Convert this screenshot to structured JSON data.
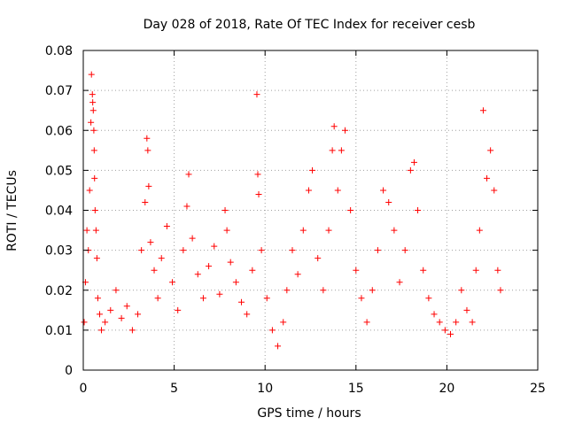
{
  "chart_data": {
    "type": "scatter",
    "title": "Day 028 of 2018, Rate Of TEC Index for receiver cesb",
    "xlabel": "GPS time / hours",
    "ylabel": "ROTI / TECUs",
    "xlim": [
      0,
      25
    ],
    "ylim": [
      0,
      0.08
    ],
    "xticks": [
      0,
      5,
      10,
      15,
      20,
      25
    ],
    "yticks": [
      0,
      0.01,
      0.02,
      0.03,
      0.04,
      0.05,
      0.06,
      0.07,
      0.08
    ],
    "xtick_labels": [
      "0",
      "5",
      "10",
      "15",
      "20",
      "25"
    ],
    "ytick_labels": [
      "0",
      "0.01",
      "0.02",
      "0.03",
      "0.04",
      "0.05",
      "0.06",
      "0.07",
      "0.08"
    ],
    "grid": true,
    "marker": "+",
    "color": "#ff0000",
    "series": [
      {
        "name": "ROTI",
        "x": [
          0.05,
          0.12,
          0.2,
          0.28,
          0.35,
          0.42,
          0.45,
          0.5,
          0.52,
          0.55,
          0.58,
          0.6,
          0.62,
          0.65,
          0.7,
          0.75,
          0.8,
          0.9,
          1.0,
          1.2,
          1.5,
          1.8,
          2.1,
          2.4,
          2.7,
          3.0,
          3.2,
          3.4,
          3.5,
          3.55,
          3.6,
          3.7,
          3.9,
          4.1,
          4.3,
          4.6,
          4.9,
          5.2,
          5.5,
          5.7,
          5.8,
          6.0,
          6.3,
          6.6,
          6.9,
          7.2,
          7.5,
          7.8,
          7.9,
          8.1,
          8.4,
          8.7,
          9.0,
          9.3,
          9.55,
          9.6,
          9.65,
          9.8,
          10.1,
          10.4,
          10.7,
          11.0,
          11.2,
          11.5,
          11.8,
          12.1,
          12.4,
          12.6,
          12.9,
          13.2,
          13.5,
          13.7,
          13.8,
          14.0,
          14.2,
          14.4,
          14.7,
          15.0,
          15.3,
          15.6,
          15.9,
          16.2,
          16.5,
          16.8,
          17.1,
          17.4,
          17.7,
          18.0,
          18.2,
          18.4,
          18.7,
          19.0,
          19.3,
          19.6,
          19.9,
          20.2,
          20.5,
          20.8,
          21.1,
          21.4,
          21.6,
          21.8,
          22.0,
          22.2,
          22.4,
          22.6,
          22.8,
          22.95
        ],
        "y": [
          0.012,
          0.022,
          0.035,
          0.03,
          0.045,
          0.062,
          0.074,
          0.069,
          0.067,
          0.065,
          0.06,
          0.055,
          0.048,
          0.04,
          0.035,
          0.028,
          0.018,
          0.014,
          0.01,
          0.012,
          0.015,
          0.02,
          0.013,
          0.016,
          0.01,
          0.014,
          0.03,
          0.042,
          0.058,
          0.055,
          0.046,
          0.032,
          0.025,
          0.018,
          0.028,
          0.036,
          0.022,
          0.015,
          0.03,
          0.041,
          0.049,
          0.033,
          0.024,
          0.018,
          0.026,
          0.031,
          0.019,
          0.04,
          0.035,
          0.027,
          0.022,
          0.017,
          0.014,
          0.025,
          0.069,
          0.049,
          0.044,
          0.03,
          0.018,
          0.01,
          0.006,
          0.012,
          0.02,
          0.03,
          0.024,
          0.035,
          0.045,
          0.05,
          0.028,
          0.02,
          0.035,
          0.055,
          0.061,
          0.045,
          0.055,
          0.06,
          0.04,
          0.025,
          0.018,
          0.012,
          0.02,
          0.03,
          0.045,
          0.042,
          0.035,
          0.022,
          0.03,
          0.05,
          0.052,
          0.04,
          0.025,
          0.018,
          0.014,
          0.012,
          0.01,
          0.009,
          0.012,
          0.02,
          0.015,
          0.012,
          0.025,
          0.035,
          0.065,
          0.048,
          0.055,
          0.045,
          0.025,
          0.02
        ]
      }
    ]
  }
}
